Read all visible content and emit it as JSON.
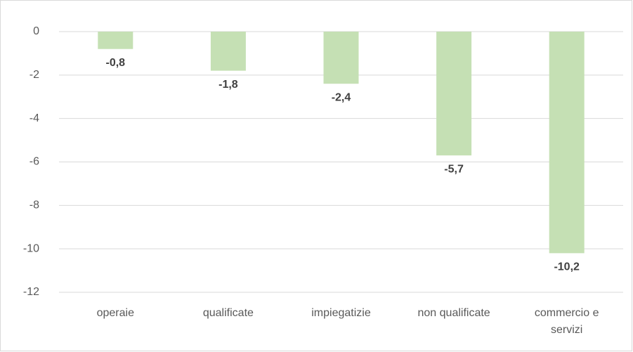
{
  "chart_data": {
    "type": "bar",
    "categories": [
      "operaie",
      "qualificate",
      "impiegatizie",
      "non qualificate",
      "commercio e servizi"
    ],
    "values": [
      -0.8,
      -1.8,
      -2.4,
      -5.7,
      -10.2
    ],
    "value_labels": [
      "-0,8",
      "-1,8",
      "-2,4",
      "-5,7",
      "-10,2"
    ],
    "color": "#c5e0b4",
    "ylim": [
      -12,
      0
    ],
    "yticks": [
      0,
      -2,
      -4,
      -6,
      -8,
      -10,
      -12
    ],
    "grid": true
  }
}
